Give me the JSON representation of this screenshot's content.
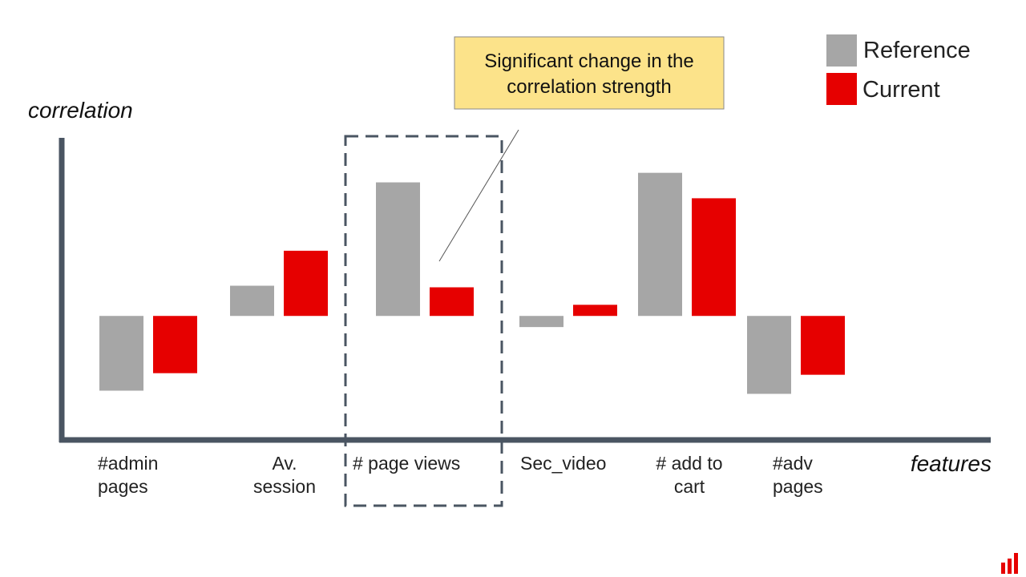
{
  "chart_data": {
    "type": "bar",
    "title": "",
    "xlabel": "features",
    "ylabel": "correlation",
    "categories": [
      [
        "#admin",
        "pages"
      ],
      [
        "Av.",
        "session"
      ],
      [
        "# page views"
      ],
      [
        "Sec_video"
      ],
      [
        "# add to",
        "cart"
      ],
      [
        "#adv",
        "pages"
      ]
    ],
    "series": [
      {
        "name": "Reference",
        "color": "#a6a6a6",
        "values": [
          -0.47,
          0.19,
          0.84,
          -0.07,
          0.9,
          -0.49
        ]
      },
      {
        "name": "Current",
        "color": "#e60000",
        "values": [
          -0.36,
          0.41,
          0.18,
          0.07,
          0.74,
          -0.37
        ]
      }
    ],
    "ylim": [
      -0.78,
      1.12
    ],
    "grid": false,
    "legend": "top-right",
    "annotation": {
      "lines": [
        "Significant change in the",
        "correlation strength"
      ],
      "background": "#fce38a",
      "target_category": "# page views"
    }
  },
  "brand": {
    "logo_icon": "bar-chart-logo-icon",
    "color": "#e60000"
  }
}
